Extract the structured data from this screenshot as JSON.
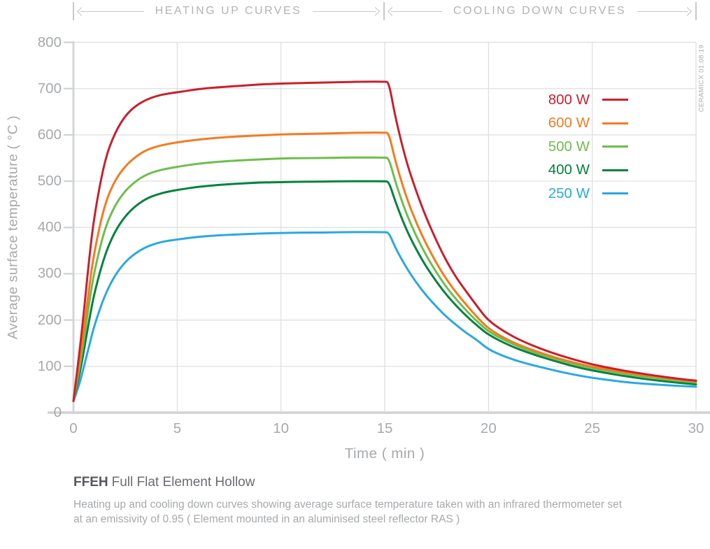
{
  "header": {
    "sections": [
      {
        "label": "HEATING UP CURVES"
      },
      {
        "label": "COOLING DOWN CURVES"
      }
    ]
  },
  "watermark": "CERAMICX 01.08.19",
  "chart_data": {
    "type": "line",
    "title": "",
    "xlabel": "Time ( min )",
    "ylabel": "Average surface temperature ( °C )",
    "xlim": [
      0,
      30
    ],
    "ylim": [
      0,
      800
    ],
    "xticks": [
      0,
      5,
      10,
      15,
      20,
      25,
      30
    ],
    "yticks": [
      0,
      100,
      200,
      300,
      400,
      500,
      600,
      700,
      800
    ],
    "grid": true,
    "legend_position": "upper right",
    "phase_boundary_min": 15,
    "phases": [
      "heating up (0-15 min)",
      "cooling down (15-30 min)"
    ],
    "x": [
      0,
      0.25,
      0.5,
      0.75,
      1,
      1.5,
      2,
      2.5,
      3,
      3.5,
      4,
      4.5,
      5,
      6,
      7,
      8,
      9,
      10,
      11,
      12,
      13,
      14,
      15,
      15.2,
      15.5,
      16,
      16.5,
      17,
      17.5,
      18,
      18.5,
      19,
      19.5,
      20,
      21,
      22,
      23,
      24,
      25,
      26,
      27,
      28,
      29,
      30
    ],
    "series": [
      {
        "name": "800 W",
        "color": "#c8202e",
        "plateau_c": 715,
        "y": [
          25,
          115,
          215,
          330,
          425,
          545,
          605,
          642,
          663,
          676,
          684,
          689,
          692,
          699,
          703,
          706,
          709,
          711,
          712,
          713,
          714,
          715,
          715,
          714,
          640,
          548,
          480,
          421,
          370,
          325,
          288,
          257,
          227,
          198,
          168,
          147,
          130,
          116,
          104,
          95,
          87,
          80,
          74,
          69
        ]
      },
      {
        "name": "600 W",
        "color": "#f47b21",
        "plateau_c": 605,
        "y": [
          25,
          95,
          175,
          268,
          348,
          450,
          502,
          533,
          553,
          567,
          575,
          580,
          584,
          590,
          594,
          597,
          599,
          601,
          602,
          603,
          604,
          605,
          605,
          604,
          545,
          470,
          412,
          364,
          322,
          286,
          256,
          229,
          204,
          181,
          155,
          137,
          122,
          109,
          99,
          91,
          84,
          78,
          72,
          67
        ]
      },
      {
        "name": "500 W",
        "color": "#6ebe4b",
        "plateau_c": 551,
        "y": [
          25,
          85,
          155,
          235,
          305,
          397,
          448,
          480,
          500,
          514,
          522,
          527,
          531,
          538,
          542,
          545,
          547,
          549,
          550,
          550,
          551,
          551,
          551,
          550,
          500,
          434,
          383,
          339,
          302,
          269,
          242,
          217,
          195,
          175,
          151,
          133,
          119,
          106,
          96,
          88,
          81,
          75,
          70,
          65
        ]
      },
      {
        "name": "400 W",
        "color": "#00833e",
        "plateau_c": 500,
        "y": [
          25,
          72,
          132,
          198,
          258,
          340,
          392,
          425,
          447,
          462,
          471,
          477,
          481,
          488,
          492,
          495,
          497,
          498,
          499,
          499,
          500,
          500,
          500,
          499,
          457,
          399,
          354,
          315,
          282,
          253,
          228,
          206,
          186,
          168,
          145,
          128,
          114,
          101,
          91,
          83,
          76,
          70,
          65,
          61
        ]
      },
      {
        "name": "250 W",
        "color": "#2aa9e0",
        "plateau_c": 390,
        "y": [
          25,
          55,
          98,
          143,
          188,
          253,
          297,
          326,
          345,
          358,
          366,
          371,
          374,
          380,
          383,
          385,
          387,
          388,
          389,
          389,
          390,
          390,
          390,
          389,
          357,
          316,
          282,
          253,
          228,
          206,
          187,
          170,
          155,
          136,
          117,
          104,
          93,
          83,
          75,
          69,
          64,
          61,
          58,
          56
        ]
      }
    ]
  },
  "footer": {
    "code": "FFEH",
    "name": "Full Flat Element Hollow",
    "description": [
      "Heating up and cooling down curves showing average surface temperature taken with an infrared thermometer set",
      "at an emissivity of 0.95  ( Element mounted in an aluminised steel reflector RAS )"
    ]
  },
  "colors": {
    "grid": "#dcdddd",
    "axis": "#d1d3d4",
    "tick_text": "#a7a9ac",
    "header_text": "#b1b3b6"
  }
}
